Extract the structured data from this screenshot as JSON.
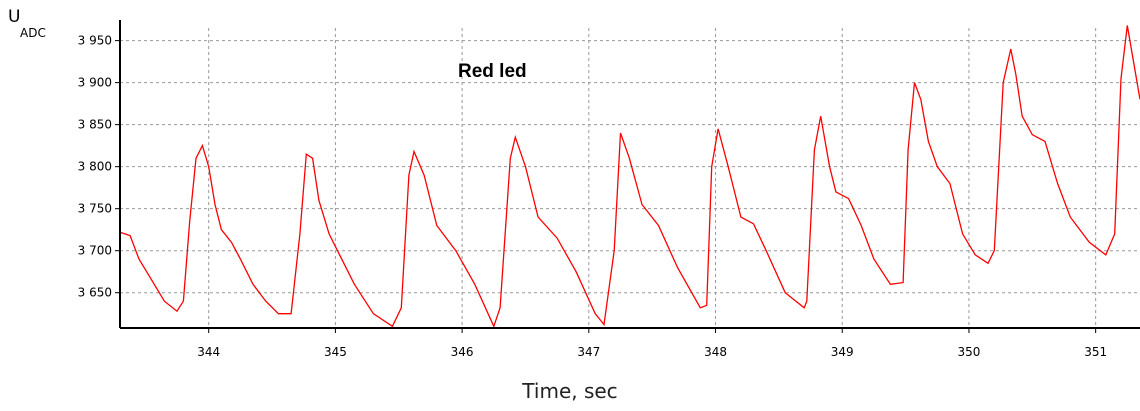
{
  "chart_data": {
    "type": "line",
    "title": "Red led",
    "xlabel": "Time, sec",
    "ylabel": "U",
    "ylabel_subscript": "ADC",
    "xlim": [
      343.3,
      351.35
    ],
    "ylim": [
      3608,
      3965
    ],
    "grid": true,
    "x_ticks": [
      344,
      345,
      346,
      347,
      348,
      349,
      350,
      351
    ],
    "x_tick_labels": [
      "344",
      "345",
      "346",
      "347",
      "348",
      "349",
      "350",
      "351"
    ],
    "y_ticks": [
      3650,
      3700,
      3750,
      3800,
      3850,
      3900,
      3950
    ],
    "y_tick_labels": [
      "3 650",
      "3 700",
      "3 750",
      "3 800",
      "3 850",
      "3 900",
      "3 950"
    ],
    "colors": {
      "series": "#ff0000",
      "grid": "#999999",
      "axis": "#000000"
    },
    "series": [
      {
        "x": [
          343.3,
          343.38,
          343.45,
          343.55,
          343.65,
          343.75,
          343.8,
          343.85,
          343.9,
          343.95,
          344.0,
          344.05,
          344.1,
          344.18,
          344.25,
          344.35,
          344.45,
          344.55,
          344.65,
          344.72,
          344.77,
          344.82,
          344.87,
          344.95,
          345.05,
          345.15,
          345.3,
          345.45,
          345.52,
          345.58,
          345.62,
          345.7,
          345.8,
          345.95,
          346.1,
          346.25,
          346.3,
          346.38,
          346.42,
          346.5,
          346.6,
          346.75,
          346.9,
          347.05,
          347.12,
          347.2,
          347.25,
          347.32,
          347.42,
          347.55,
          347.7,
          347.88,
          347.93,
          347.97,
          348.02,
          348.1,
          348.2,
          348.3,
          348.4,
          348.55,
          348.7,
          348.72,
          348.78,
          348.83,
          348.9,
          348.95,
          349.05,
          349.15,
          349.25,
          349.38,
          349.48,
          349.52,
          349.57,
          349.62,
          349.68,
          349.75,
          349.85,
          349.95,
          350.05,
          350.15,
          350.2,
          350.27,
          350.33,
          350.37,
          350.42,
          350.5,
          350.6,
          350.7,
          350.8,
          350.95,
          351.08,
          351.15,
          351.2,
          351.25,
          351.35
        ],
        "y": [
          3722,
          3718,
          3690,
          3665,
          3640,
          3628,
          3640,
          3735,
          3810,
          3825,
          3800,
          3755,
          3725,
          3710,
          3690,
          3660,
          3640,
          3625,
          3625,
          3720,
          3815,
          3810,
          3760,
          3720,
          3690,
          3660,
          3625,
          3610,
          3632,
          3790,
          3818,
          3790,
          3730,
          3700,
          3660,
          3610,
          3632,
          3810,
          3835,
          3800,
          3740,
          3715,
          3675,
          3625,
          3612,
          3700,
          3840,
          3810,
          3755,
          3730,
          3680,
          3632,
          3635,
          3800,
          3845,
          3800,
          3740,
          3732,
          3700,
          3650,
          3632,
          3640,
          3820,
          3860,
          3800,
          3770,
          3762,
          3730,
          3690,
          3660,
          3662,
          3820,
          3900,
          3880,
          3830,
          3800,
          3780,
          3720,
          3695,
          3685,
          3700,
          3900,
          3940,
          3910,
          3860,
          3838,
          3830,
          3780,
          3740,
          3710,
          3695,
          3720,
          3905,
          3968,
          3880
        ]
      }
    ]
  }
}
